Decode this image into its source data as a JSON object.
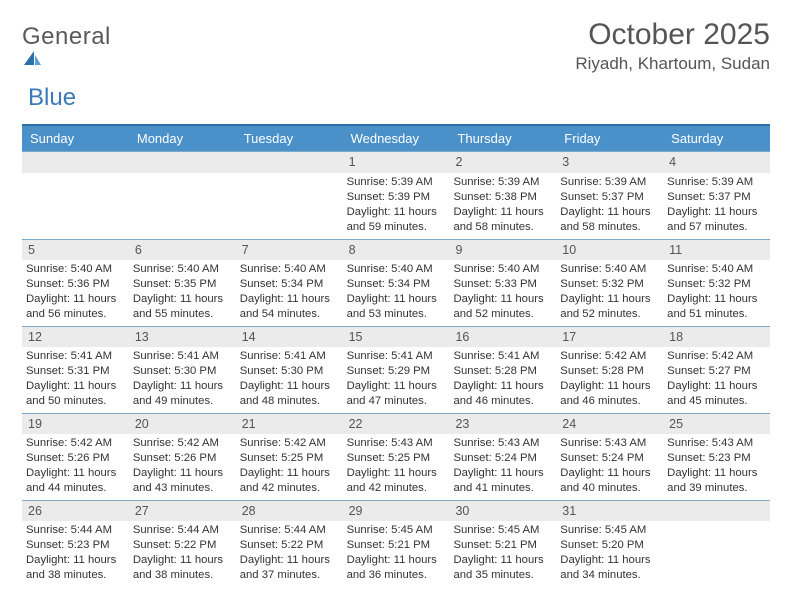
{
  "logo": {
    "general": "General",
    "blue": "Blue"
  },
  "title": "October 2025",
  "location": "Riyadh, Khartoum, Sudan",
  "colors": {
    "header_bar": "#4a90c9",
    "header_border_top": "#2d6fa8",
    "row_border": "#7da9c9",
    "daynum_bg": "#ebebeb",
    "logo_blue": "#3a7ab8",
    "text": "#333333"
  },
  "daysOfWeek": [
    "Sunday",
    "Monday",
    "Tuesday",
    "Wednesday",
    "Thursday",
    "Friday",
    "Saturday"
  ],
  "weeks": [
    [
      {
        "n": "",
        "sunrise": "",
        "sunset": "",
        "daylight": ""
      },
      {
        "n": "",
        "sunrise": "",
        "sunset": "",
        "daylight": ""
      },
      {
        "n": "",
        "sunrise": "",
        "sunset": "",
        "daylight": ""
      },
      {
        "n": "1",
        "sunrise": "Sunrise: 5:39 AM",
        "sunset": "Sunset: 5:39 PM",
        "daylight": "Daylight: 11 hours and 59 minutes."
      },
      {
        "n": "2",
        "sunrise": "Sunrise: 5:39 AM",
        "sunset": "Sunset: 5:38 PM",
        "daylight": "Daylight: 11 hours and 58 minutes."
      },
      {
        "n": "3",
        "sunrise": "Sunrise: 5:39 AM",
        "sunset": "Sunset: 5:37 PM",
        "daylight": "Daylight: 11 hours and 58 minutes."
      },
      {
        "n": "4",
        "sunrise": "Sunrise: 5:39 AM",
        "sunset": "Sunset: 5:37 PM",
        "daylight": "Daylight: 11 hours and 57 minutes."
      }
    ],
    [
      {
        "n": "5",
        "sunrise": "Sunrise: 5:40 AM",
        "sunset": "Sunset: 5:36 PM",
        "daylight": "Daylight: 11 hours and 56 minutes."
      },
      {
        "n": "6",
        "sunrise": "Sunrise: 5:40 AM",
        "sunset": "Sunset: 5:35 PM",
        "daylight": "Daylight: 11 hours and 55 minutes."
      },
      {
        "n": "7",
        "sunrise": "Sunrise: 5:40 AM",
        "sunset": "Sunset: 5:34 PM",
        "daylight": "Daylight: 11 hours and 54 minutes."
      },
      {
        "n": "8",
        "sunrise": "Sunrise: 5:40 AM",
        "sunset": "Sunset: 5:34 PM",
        "daylight": "Daylight: 11 hours and 53 minutes."
      },
      {
        "n": "9",
        "sunrise": "Sunrise: 5:40 AM",
        "sunset": "Sunset: 5:33 PM",
        "daylight": "Daylight: 11 hours and 52 minutes."
      },
      {
        "n": "10",
        "sunrise": "Sunrise: 5:40 AM",
        "sunset": "Sunset: 5:32 PM",
        "daylight": "Daylight: 11 hours and 52 minutes."
      },
      {
        "n": "11",
        "sunrise": "Sunrise: 5:40 AM",
        "sunset": "Sunset: 5:32 PM",
        "daylight": "Daylight: 11 hours and 51 minutes."
      }
    ],
    [
      {
        "n": "12",
        "sunrise": "Sunrise: 5:41 AM",
        "sunset": "Sunset: 5:31 PM",
        "daylight": "Daylight: 11 hours and 50 minutes."
      },
      {
        "n": "13",
        "sunrise": "Sunrise: 5:41 AM",
        "sunset": "Sunset: 5:30 PM",
        "daylight": "Daylight: 11 hours and 49 minutes."
      },
      {
        "n": "14",
        "sunrise": "Sunrise: 5:41 AM",
        "sunset": "Sunset: 5:30 PM",
        "daylight": "Daylight: 11 hours and 48 minutes."
      },
      {
        "n": "15",
        "sunrise": "Sunrise: 5:41 AM",
        "sunset": "Sunset: 5:29 PM",
        "daylight": "Daylight: 11 hours and 47 minutes."
      },
      {
        "n": "16",
        "sunrise": "Sunrise: 5:41 AM",
        "sunset": "Sunset: 5:28 PM",
        "daylight": "Daylight: 11 hours and 46 minutes."
      },
      {
        "n": "17",
        "sunrise": "Sunrise: 5:42 AM",
        "sunset": "Sunset: 5:28 PM",
        "daylight": "Daylight: 11 hours and 46 minutes."
      },
      {
        "n": "18",
        "sunrise": "Sunrise: 5:42 AM",
        "sunset": "Sunset: 5:27 PM",
        "daylight": "Daylight: 11 hours and 45 minutes."
      }
    ],
    [
      {
        "n": "19",
        "sunrise": "Sunrise: 5:42 AM",
        "sunset": "Sunset: 5:26 PM",
        "daylight": "Daylight: 11 hours and 44 minutes."
      },
      {
        "n": "20",
        "sunrise": "Sunrise: 5:42 AM",
        "sunset": "Sunset: 5:26 PM",
        "daylight": "Daylight: 11 hours and 43 minutes."
      },
      {
        "n": "21",
        "sunrise": "Sunrise: 5:42 AM",
        "sunset": "Sunset: 5:25 PM",
        "daylight": "Daylight: 11 hours and 42 minutes."
      },
      {
        "n": "22",
        "sunrise": "Sunrise: 5:43 AM",
        "sunset": "Sunset: 5:25 PM",
        "daylight": "Daylight: 11 hours and 42 minutes."
      },
      {
        "n": "23",
        "sunrise": "Sunrise: 5:43 AM",
        "sunset": "Sunset: 5:24 PM",
        "daylight": "Daylight: 11 hours and 41 minutes."
      },
      {
        "n": "24",
        "sunrise": "Sunrise: 5:43 AM",
        "sunset": "Sunset: 5:24 PM",
        "daylight": "Daylight: 11 hours and 40 minutes."
      },
      {
        "n": "25",
        "sunrise": "Sunrise: 5:43 AM",
        "sunset": "Sunset: 5:23 PM",
        "daylight": "Daylight: 11 hours and 39 minutes."
      }
    ],
    [
      {
        "n": "26",
        "sunrise": "Sunrise: 5:44 AM",
        "sunset": "Sunset: 5:23 PM",
        "daylight": "Daylight: 11 hours and 38 minutes."
      },
      {
        "n": "27",
        "sunrise": "Sunrise: 5:44 AM",
        "sunset": "Sunset: 5:22 PM",
        "daylight": "Daylight: 11 hours and 38 minutes."
      },
      {
        "n": "28",
        "sunrise": "Sunrise: 5:44 AM",
        "sunset": "Sunset: 5:22 PM",
        "daylight": "Daylight: 11 hours and 37 minutes."
      },
      {
        "n": "29",
        "sunrise": "Sunrise: 5:45 AM",
        "sunset": "Sunset: 5:21 PM",
        "daylight": "Daylight: 11 hours and 36 minutes."
      },
      {
        "n": "30",
        "sunrise": "Sunrise: 5:45 AM",
        "sunset": "Sunset: 5:21 PM",
        "daylight": "Daylight: 11 hours and 35 minutes."
      },
      {
        "n": "31",
        "sunrise": "Sunrise: 5:45 AM",
        "sunset": "Sunset: 5:20 PM",
        "daylight": "Daylight: 11 hours and 34 minutes."
      },
      {
        "n": "",
        "sunrise": "",
        "sunset": "",
        "daylight": ""
      }
    ]
  ]
}
